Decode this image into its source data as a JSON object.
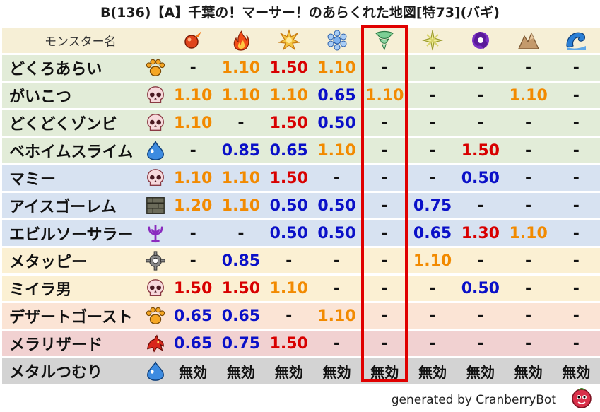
{
  "title": "B(136)【A】千葉の！マーサー！のあらくれた地図[特73](バギ)",
  "header": {
    "name_col": "モンスター名",
    "elements": [
      {
        "icon": "fire-orb-icon"
      },
      {
        "icon": "flame-icon"
      },
      {
        "icon": "explosion-icon"
      },
      {
        "icon": "ice-icon"
      },
      {
        "icon": "tornado-icon"
      },
      {
        "icon": "lightning-icon"
      },
      {
        "icon": "darkness-icon"
      },
      {
        "icon": "earth-icon"
      },
      {
        "icon": "water-wave-icon"
      }
    ]
  },
  "rows": [
    {
      "name": "どくろあらい",
      "icon": "paw-icon",
      "bg": "green",
      "cells": [
        [
          "-",
          "dash"
        ],
        [
          "1.10",
          "orange"
        ],
        [
          "1.50",
          "red"
        ],
        [
          "1.10",
          "orange"
        ],
        [
          "-",
          "dash"
        ],
        [
          "-",
          "dash"
        ],
        [
          "-",
          "dash"
        ],
        [
          "-",
          "dash"
        ],
        [
          "-",
          "dash"
        ]
      ]
    },
    {
      "name": "がいこつ",
      "icon": "skull-icon",
      "bg": "green",
      "cells": [
        [
          "1.10",
          "orange"
        ],
        [
          "1.10",
          "orange"
        ],
        [
          "1.10",
          "orange"
        ],
        [
          "0.65",
          "blue"
        ],
        [
          "1.10",
          "orange"
        ],
        [
          "-",
          "dash"
        ],
        [
          "-",
          "dash"
        ],
        [
          "1.10",
          "orange"
        ],
        [
          "-",
          "dash"
        ]
      ]
    },
    {
      "name": "どくどくゾンビ",
      "icon": "skull-icon",
      "bg": "green",
      "cells": [
        [
          "1.10",
          "orange"
        ],
        [
          "-",
          "dash"
        ],
        [
          "1.50",
          "red"
        ],
        [
          "0.50",
          "blue"
        ],
        [
          "-",
          "dash"
        ],
        [
          "-",
          "dash"
        ],
        [
          "-",
          "dash"
        ],
        [
          "-",
          "dash"
        ],
        [
          "-",
          "dash"
        ]
      ]
    },
    {
      "name": "ベホイムスライム",
      "icon": "slime-icon",
      "bg": "green",
      "cells": [
        [
          "-",
          "dash"
        ],
        [
          "0.85",
          "blue"
        ],
        [
          "0.65",
          "blue"
        ],
        [
          "1.10",
          "orange"
        ],
        [
          "-",
          "dash"
        ],
        [
          "-",
          "dash"
        ],
        [
          "1.50",
          "red"
        ],
        [
          "-",
          "dash"
        ],
        [
          "-",
          "dash"
        ]
      ]
    },
    {
      "name": "マミー",
      "icon": "skull-icon",
      "bg": "blue",
      "cells": [
        [
          "1.10",
          "orange"
        ],
        [
          "1.10",
          "orange"
        ],
        [
          "1.50",
          "red"
        ],
        [
          "-",
          "dash"
        ],
        [
          "-",
          "dash"
        ],
        [
          "-",
          "dash"
        ],
        [
          "0.50",
          "blue"
        ],
        [
          "-",
          "dash"
        ],
        [
          "-",
          "dash"
        ]
      ]
    },
    {
      "name": "アイスゴーレム",
      "icon": "brick-icon",
      "bg": "blue",
      "cells": [
        [
          "1.20",
          "orange"
        ],
        [
          "1.10",
          "orange"
        ],
        [
          "0.50",
          "blue"
        ],
        [
          "0.50",
          "blue"
        ],
        [
          "-",
          "dash"
        ],
        [
          "0.75",
          "blue"
        ],
        [
          "-",
          "dash"
        ],
        [
          "-",
          "dash"
        ],
        [
          "-",
          "dash"
        ]
      ]
    },
    {
      "name": "エビルソーサラー",
      "icon": "trident-icon",
      "bg": "blue",
      "cells": [
        [
          "-",
          "dash"
        ],
        [
          "-",
          "dash"
        ],
        [
          "0.50",
          "blue"
        ],
        [
          "0.50",
          "blue"
        ],
        [
          "-",
          "dash"
        ],
        [
          "0.65",
          "blue"
        ],
        [
          "1.30",
          "red"
        ],
        [
          "1.10",
          "orange"
        ],
        [
          "-",
          "dash"
        ]
      ]
    },
    {
      "name": "メタッピー",
      "icon": "gear-icon",
      "bg": "yellow",
      "cells": [
        [
          "-",
          "dash"
        ],
        [
          "0.85",
          "blue"
        ],
        [
          "-",
          "dash"
        ],
        [
          "-",
          "dash"
        ],
        [
          "-",
          "dash"
        ],
        [
          "1.10",
          "orange"
        ],
        [
          "-",
          "dash"
        ],
        [
          "-",
          "dash"
        ],
        [
          "-",
          "dash"
        ]
      ]
    },
    {
      "name": "ミイラ男",
      "icon": "skull-icon",
      "bg": "yellow",
      "cells": [
        [
          "1.50",
          "red"
        ],
        [
          "1.50",
          "red"
        ],
        [
          "1.10",
          "orange"
        ],
        [
          "-",
          "dash"
        ],
        [
          "-",
          "dash"
        ],
        [
          "-",
          "dash"
        ],
        [
          "0.50",
          "blue"
        ],
        [
          "-",
          "dash"
        ],
        [
          "-",
          "dash"
        ]
      ]
    },
    {
      "name": "デザートゴースト",
      "icon": "paw-icon",
      "bg": "peach",
      "cells": [
        [
          "0.65",
          "blue"
        ],
        [
          "0.65",
          "blue"
        ],
        [
          "-",
          "dash"
        ],
        [
          "1.10",
          "orange"
        ],
        [
          "-",
          "dash"
        ],
        [
          "-",
          "dash"
        ],
        [
          "-",
          "dash"
        ],
        [
          "-",
          "dash"
        ],
        [
          "-",
          "dash"
        ]
      ]
    },
    {
      "name": "メラリザード",
      "icon": "dragon-icon",
      "bg": "pink",
      "cells": [
        [
          "0.65",
          "blue"
        ],
        [
          "0.75",
          "blue"
        ],
        [
          "1.50",
          "red"
        ],
        [
          "-",
          "dash"
        ],
        [
          "-",
          "dash"
        ],
        [
          "-",
          "dash"
        ],
        [
          "-",
          "dash"
        ],
        [
          "-",
          "dash"
        ],
        [
          "-",
          "dash"
        ]
      ]
    },
    {
      "name": "メタルつむり",
      "icon": "slime-icon",
      "bg": "gray",
      "cells": [
        [
          "無効",
          "mukou"
        ],
        [
          "無効",
          "mukou"
        ],
        [
          "無効",
          "mukou"
        ],
        [
          "無効",
          "mukou"
        ],
        [
          "無効",
          "mukou"
        ],
        [
          "無効",
          "mukou"
        ],
        [
          "無効",
          "mukou"
        ],
        [
          "無効",
          "mukou"
        ],
        [
          "無効",
          "mukou"
        ]
      ]
    }
  ],
  "highlight_column": 4,
  "footer": {
    "text": "generated by CranberryBot",
    "icon": "cranberry-bot-icon"
  }
}
